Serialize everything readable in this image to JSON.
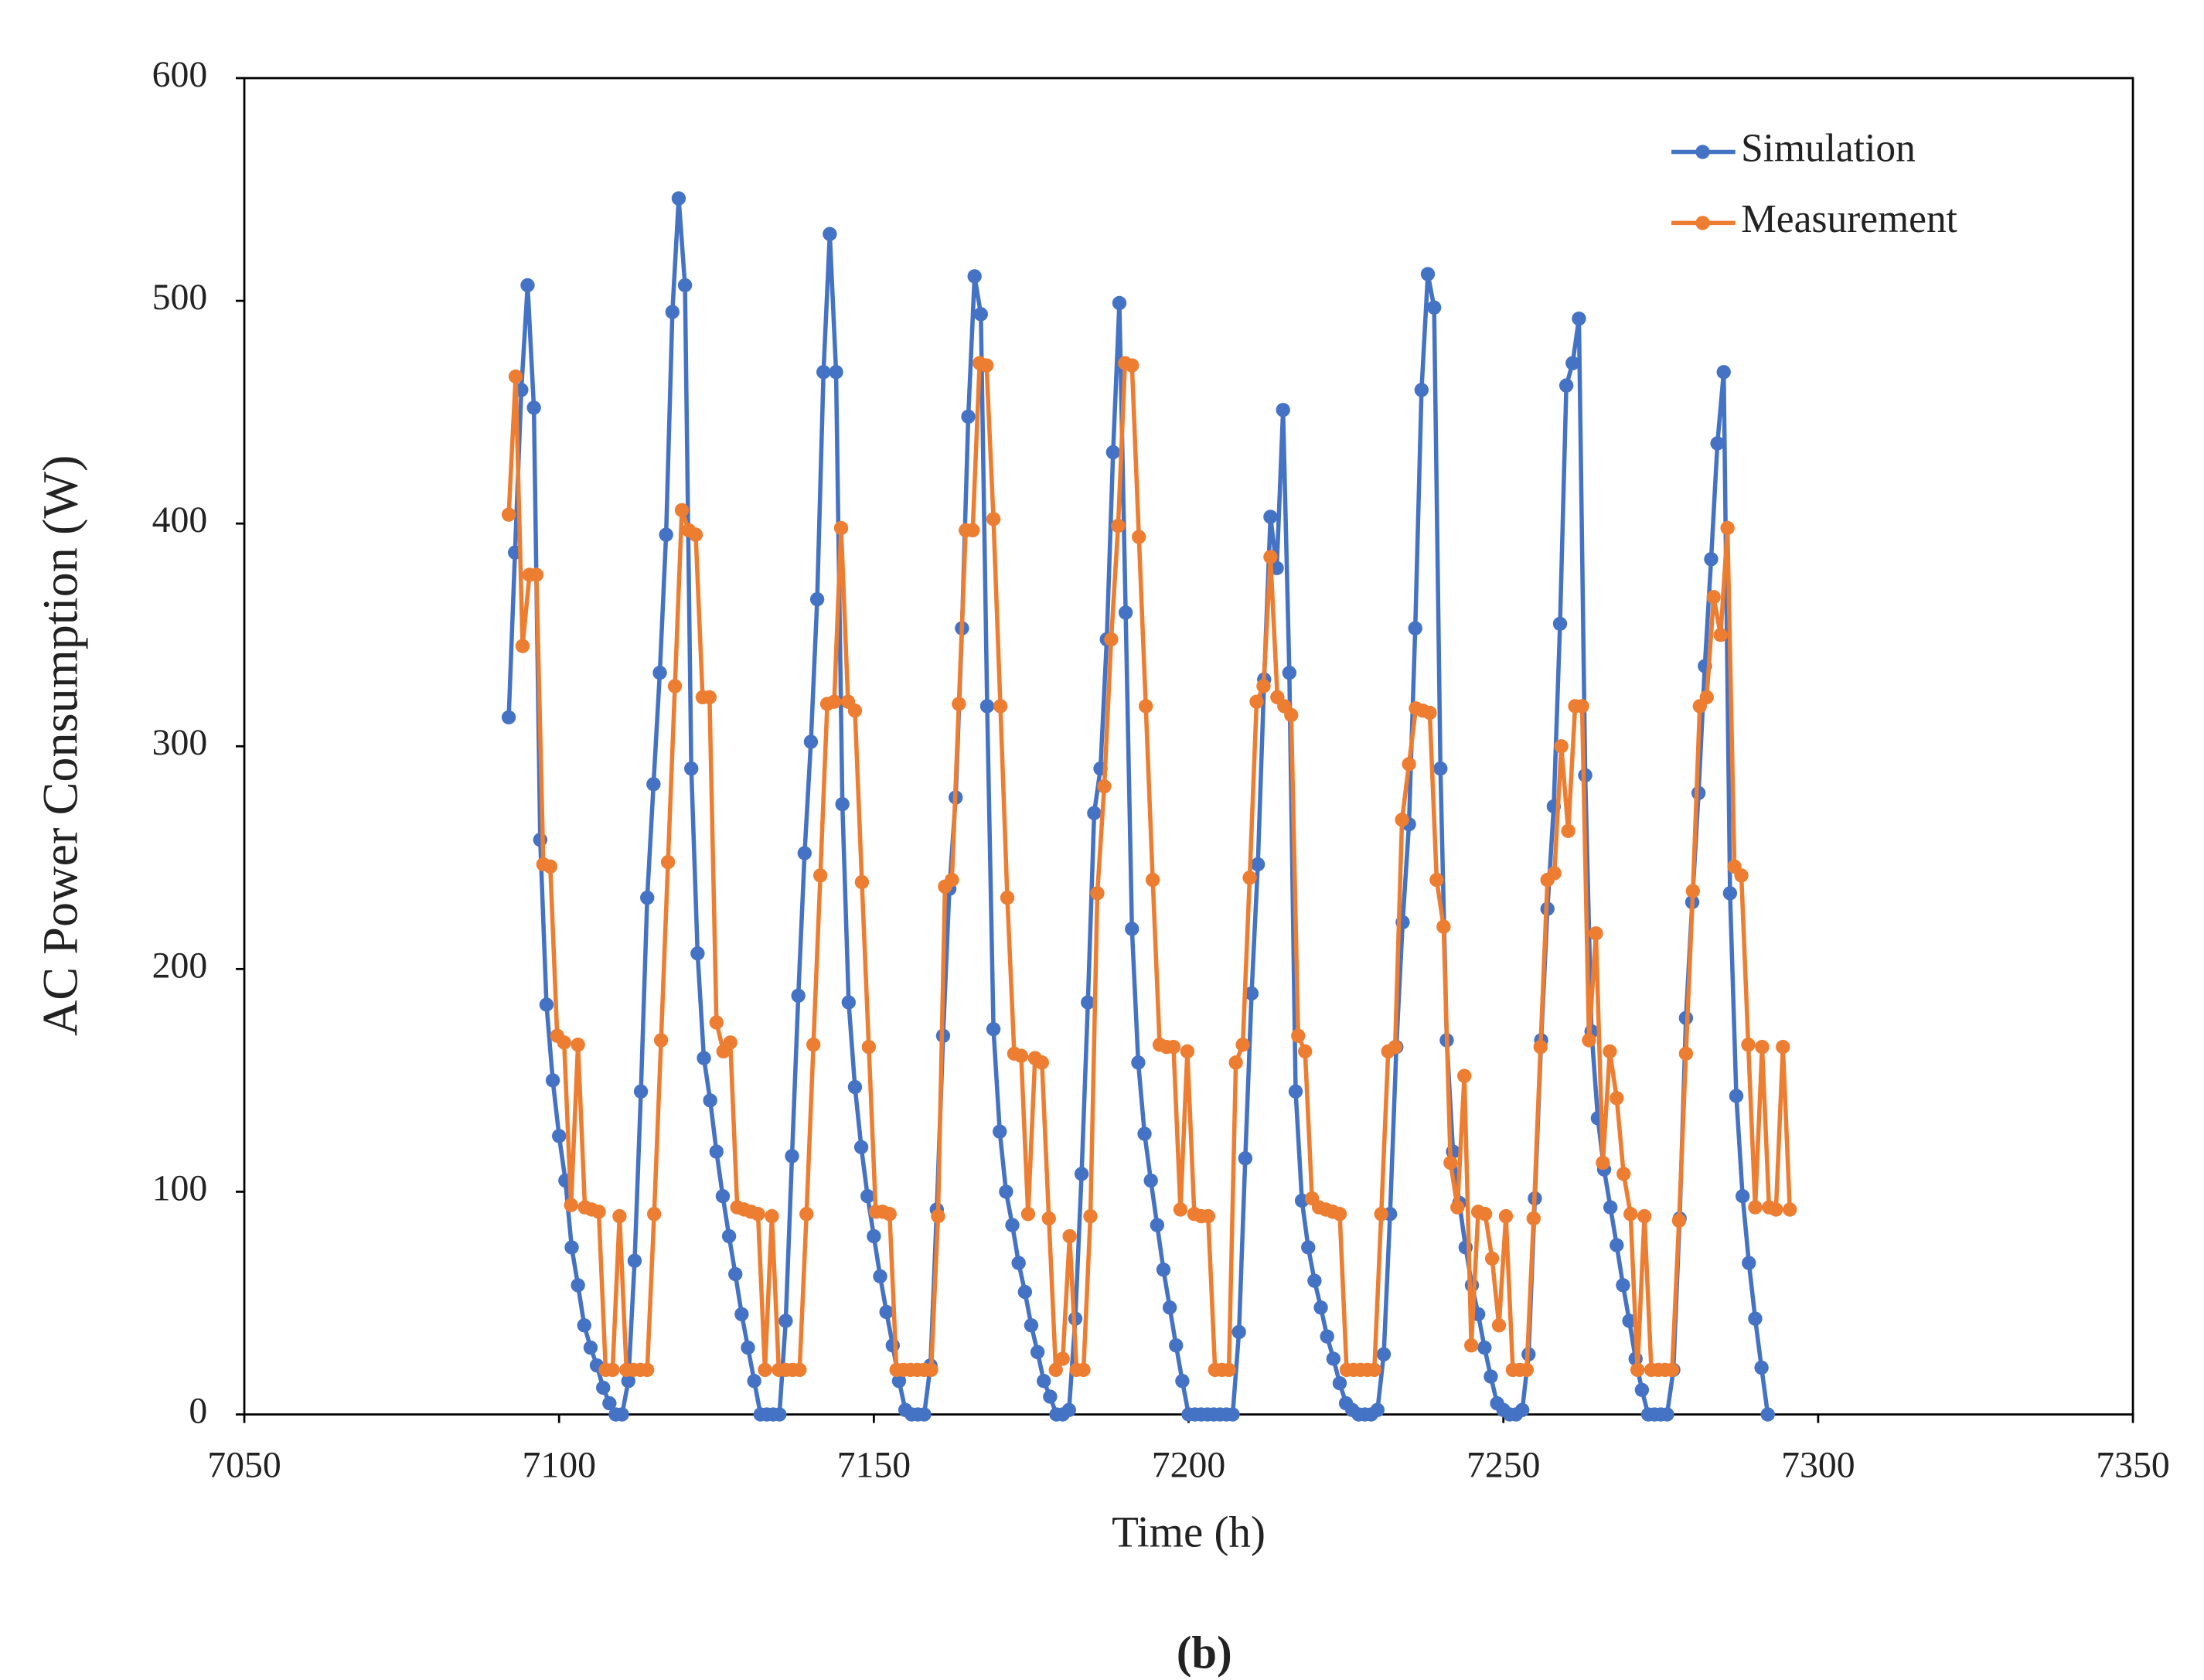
{
  "chart_data": {
    "type": "line",
    "xlabel": "Time (h)",
    "ylabel": "AC Power Consumption (W)",
    "caption": "(b)",
    "xlim": [
      7050,
      7350
    ],
    "xticks": [
      7050,
      7100,
      7150,
      7200,
      7250,
      7300,
      7350
    ],
    "ylim": [
      0,
      600
    ],
    "yticks": [
      0,
      100,
      200,
      300,
      400,
      500,
      600
    ],
    "grid": false,
    "legend": "upper right",
    "series": [
      {
        "name": "Simulation",
        "color": "#4472c4",
        "x": [
          7092,
          7093,
          7094,
          7095,
          7096,
          7097,
          7098,
          7099,
          7100,
          7101,
          7102,
          7103,
          7104,
          7105,
          7106,
          7107,
          7108,
          7109,
          7110,
          7111,
          7112,
          7113,
          7114,
          7115,
          7116,
          7117,
          7118,
          7119,
          7120,
          7121,
          7122,
          7123,
          7124,
          7125,
          7126,
          7127,
          7128,
          7129,
          7130,
          7131,
          7132,
          7133,
          7134,
          7135,
          7136,
          7137,
          7138,
          7139,
          7140,
          7141,
          7142,
          7143,
          7144,
          7145,
          7146,
          7147,
          7148,
          7149,
          7150,
          7151,
          7152,
          7153,
          7154,
          7155,
          7156,
          7157,
          7158,
          7159,
          7160,
          7161,
          7162,
          7163,
          7164,
          7165,
          7166,
          7167,
          7168,
          7169,
          7170,
          7171,
          7172,
          7173,
          7174,
          7175,
          7176,
          7177,
          7178,
          7179,
          7180,
          7181,
          7182,
          7183,
          7184,
          7185,
          7186,
          7187,
          7188,
          7189,
          7190,
          7191,
          7192,
          7193,
          7194,
          7195,
          7196,
          7197,
          7198,
          7199,
          7200,
          7201,
          7202,
          7203,
          7204,
          7205,
          7206,
          7207,
          7208,
          7209,
          7210,
          7211,
          7212,
          7213,
          7214,
          7215,
          7216,
          7217,
          7218,
          7219,
          7220,
          7221,
          7222,
          7223,
          7224,
          7225,
          7226,
          7227,
          7228,
          7229,
          7230,
          7231,
          7232,
          7233,
          7234,
          7235,
          7236,
          7237,
          7238,
          7239,
          7240,
          7241,
          7242,
          7243,
          7244,
          7245,
          7246,
          7247,
          7248,
          7249,
          7250,
          7251,
          7252,
          7253,
          7254,
          7255,
          7256,
          7257,
          7258,
          7259,
          7260,
          7261,
          7262,
          7263,
          7264,
          7265,
          7266,
          7267,
          7268,
          7269,
          7270,
          7271,
          7272,
          7273,
          7274,
          7275,
          7276,
          7277,
          7278,
          7279,
          7280,
          7281,
          7282,
          7283,
          7284,
          7285,
          7286,
          7287,
          7288,
          7289,
          7290,
          7291,
          7292
        ],
        "values": [
          313,
          387,
          460,
          507,
          452,
          258,
          184,
          150,
          125,
          105,
          75,
          58,
          40,
          30,
          22,
          12,
          5,
          0,
          0,
          15,
          69,
          145,
          232,
          283,
          333,
          395,
          495,
          546,
          507,
          290,
          207,
          160,
          141,
          118,
          98,
          80,
          63,
          45,
          30,
          15,
          0,
          0,
          0,
          0,
          42,
          116,
          188,
          252,
          302,
          366,
          468,
          530,
          468,
          274,
          185,
          147,
          120,
          98,
          80,
          62,
          46,
          31,
          15,
          2,
          0,
          0,
          0,
          22,
          92,
          170,
          236,
          277,
          353,
          448,
          511,
          494,
          318,
          173,
          127,
          100,
          85,
          68,
          55,
          40,
          28,
          15,
          8,
          0,
          0,
          2,
          43,
          108,
          185,
          270,
          290,
          348,
          432,
          499,
          360,
          218,
          158,
          126,
          105,
          85,
          65,
          48,
          31,
          15,
          0,
          0,
          0,
          0,
          0,
          0,
          0,
          0,
          37,
          115,
          189,
          247,
          330,
          403,
          380,
          451,
          333,
          145,
          96,
          75,
          60,
          48,
          35,
          25,
          14,
          5,
          2,
          0,
          0,
          0,
          2,
          27,
          90,
          165,
          221,
          265,
          353,
          460,
          512,
          497,
          290,
          168,
          118,
          95,
          75,
          58,
          45,
          30,
          17,
          5,
          2,
          0,
          0,
          2,
          27,
          97,
          168,
          227,
          273,
          355,
          462,
          472,
          492,
          287,
          172,
          133,
          110,
          93,
          76,
          58,
          42,
          25,
          11,
          0,
          0,
          0,
          0,
          20,
          88,
          178,
          230,
          279,
          336,
          384,
          436,
          468,
          234,
          143,
          98,
          68,
          43,
          21,
          0
        ]
      },
      {
        "name": "Measurement",
        "color": "#ed7d31",
        "x": [
          7092,
          7093.1,
          7094.2,
          7095.3,
          7096.4,
          7097.5,
          7098.6,
          7099.7,
          7100.8,
          7101.9,
          7103,
          7104.1,
          7105.2,
          7106.3,
          7107.4,
          7108.5,
          7109.6,
          7110.7,
          7111.8,
          7112.9,
          7114,
          7115.1,
          7116.2,
          7117.3,
          7118.4,
          7119.5,
          7120.6,
          7121.7,
          7122.8,
          7123.9,
          7125,
          7126.1,
          7127.2,
          7128.3,
          7129.4,
          7130.5,
          7131.6,
          7132.7,
          7133.8,
          7134.9,
          7136,
          7137.1,
          7138.2,
          7139.3,
          7140.4,
          7141.5,
          7142.6,
          7143.7,
          7144.8,
          7145.9,
          7147,
          7148.1,
          7149.2,
          7150.3,
          7151.4,
          7152.5,
          7153.6,
          7154.7,
          7155.8,
          7156.9,
          7158,
          7159.1,
          7160.2,
          7161.3,
          7162.4,
          7163.5,
          7164.6,
          7165.7,
          7166.8,
          7167.9,
          7169,
          7170.1,
          7171.2,
          7172.3,
          7173.4,
          7174.5,
          7175.6,
          7176.7,
          7177.8,
          7178.9,
          7180,
          7181.1,
          7182.2,
          7183.3,
          7184.4,
          7185.5,
          7186.6,
          7187.7,
          7188.8,
          7189.9,
          7191,
          7192.1,
          7193.2,
          7194.3,
          7195.4,
          7196.5,
          7197.6,
          7198.7,
          7199.8,
          7200.9,
          7202,
          7203.1,
          7204.2,
          7205.3,
          7206.4,
          7207.5,
          7208.6,
          7209.7,
          7210.8,
          7211.9,
          7213,
          7214.1,
          7215.2,
          7216.3,
          7217.4,
          7218.5,
          7219.6,
          7220.7,
          7221.8,
          7222.9,
          7224,
          7225.1,
          7226.2,
          7227.3,
          7228.4,
          7229.5,
          7230.6,
          7231.7,
          7232.8,
          7233.9,
          7235,
          7236.1,
          7237.2,
          7238.3,
          7239.4,
          7240.5,
          7241.6,
          7242.7,
          7243.8,
          7244.9,
          7246,
          7247.1,
          7248.2,
          7249.3,
          7250.4,
          7251.5,
          7252.6,
          7253.7,
          7254.8,
          7255.9,
          7257,
          7258.1,
          7259.2,
          7260.3,
          7261.4,
          7262.5,
          7263.6,
          7264.7,
          7265.8,
          7266.9,
          7268,
          7269.1,
          7270.2,
          7271.3,
          7272.4,
          7273.5,
          7274.6,
          7275.7,
          7276.8,
          7277.9,
          7279,
          7280.1,
          7281.2,
          7282.3,
          7283.4,
          7284.5,
          7285.6,
          7286.7,
          7287.8,
          7288.9,
          7290,
          7291.1,
          7292.2,
          7293.3,
          7294.4,
          7295.5
        ],
        "values": [
          404,
          466,
          345,
          377,
          377,
          247,
          246,
          170,
          167,
          94,
          166,
          93,
          92,
          91,
          20,
          20,
          89,
          20,
          20,
          20,
          20,
          90,
          168,
          248,
          327,
          406,
          397,
          395,
          322,
          322,
          176,
          163,
          167,
          93,
          92,
          91,
          90,
          20,
          89,
          20,
          20,
          20,
          20,
          90,
          166,
          242,
          319,
          320,
          398,
          320,
          316,
          239,
          165,
          91,
          91,
          90,
          20,
          20,
          20,
          20,
          20,
          20,
          89,
          237,
          240,
          319,
          397,
          397,
          472,
          471,
          402,
          318,
          232,
          162,
          161,
          90,
          160,
          158,
          88,
          20,
          25,
          80,
          20,
          20,
          89,
          234,
          282,
          348,
          399,
          472,
          471,
          394,
          318,
          240,
          166,
          165,
          165,
          92,
          163,
          90,
          89,
          89,
          20,
          20,
          20,
          158,
          166,
          241,
          320,
          327,
          385,
          322,
          318,
          314,
          170,
          163,
          97,
          93,
          92,
          91,
          90,
          20,
          20,
          20,
          20,
          20,
          90,
          163,
          165,
          267,
          292,
          317,
          316,
          315,
          240,
          219,
          113,
          93,
          152,
          31,
          91,
          90,
          70,
          40,
          89,
          20,
          20,
          20,
          88,
          165,
          240,
          243,
          300,
          262,
          318,
          318,
          168,
          216,
          113,
          163,
          142,
          108,
          90,
          20,
          89,
          20,
          20,
          20,
          20,
          87,
          162,
          235,
          318,
          322,
          367,
          350,
          398,
          246,
          242,
          166,
          93,
          165,
          93,
          92,
          165,
          92
        ]
      }
    ]
  }
}
